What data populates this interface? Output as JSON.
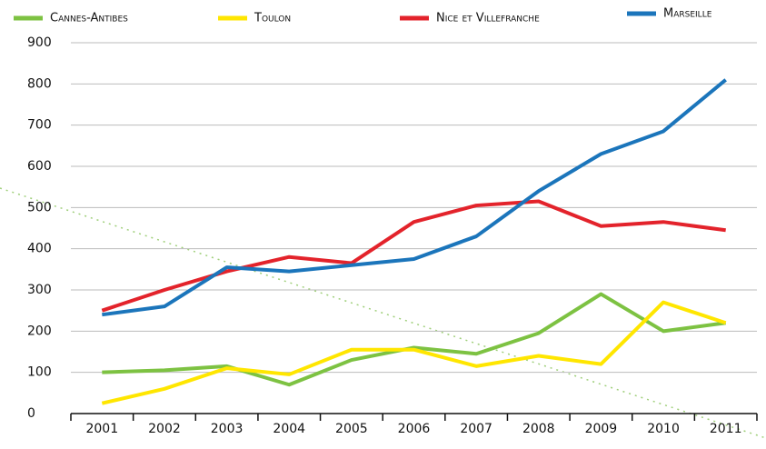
{
  "chart_data": {
    "type": "line",
    "categories": [
      "2001",
      "2002",
      "2003",
      "2004",
      "2005",
      "2006",
      "2007",
      "2008",
      "2009",
      "2010",
      "2011"
    ],
    "series": [
      {
        "name": "Cannes-Antibes",
        "color": "#7dc242",
        "values": [
          100,
          105,
          115,
          70,
          130,
          160,
          145,
          195,
          290,
          200,
          220
        ]
      },
      {
        "name": "Toulon",
        "color": "#ffe600",
        "values": [
          25,
          60,
          110,
          95,
          155,
          155,
          115,
          140,
          120,
          270,
          220
        ]
      },
      {
        "name": "Nice et Villefranche",
        "color": "#e3232b",
        "values": [
          250,
          300,
          345,
          380,
          365,
          465,
          505,
          515,
          455,
          465,
          445
        ]
      },
      {
        "name": "Marseille",
        "color": "#1b75bb",
        "values": [
          240,
          260,
          355,
          345,
          360,
          375,
          430,
          540,
          630,
          685,
          810
        ]
      }
    ],
    "ylim": [
      0,
      900
    ],
    "yticks": [
      0,
      100,
      200,
      300,
      400,
      500,
      600,
      700,
      800,
      900
    ],
    "grid": true
  }
}
